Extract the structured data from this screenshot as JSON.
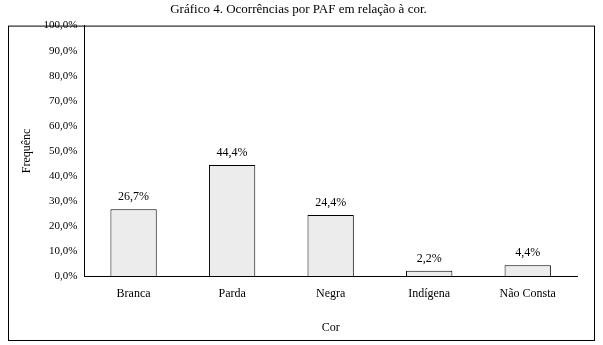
{
  "chart_data": {
    "type": "bar",
    "title": "Gráfico 4. Ocorrências por PAF em relação à cor.",
    "x_label": "Cor",
    "y_label": "Frequênc",
    "categories": [
      "Branca",
      "Parda",
      "Negra",
      "Indígena",
      "Não Consta"
    ],
    "values": [
      26.7,
      44.4,
      24.4,
      2.2,
      4.4
    ],
    "value_labels": [
      "26,7%",
      "44,4%",
      "24,4%",
      "2,2%",
      "4,4%"
    ],
    "data_labels": true,
    "color": "#ececec",
    "ylim": [
      0,
      100
    ],
    "yticks": [
      {
        "value": 0,
        "label": "0,0%"
      },
      {
        "value": 10,
        "label": "10,0%"
      },
      {
        "value": 20,
        "label": "20,0%"
      },
      {
        "value": 30,
        "label": "30,0%"
      },
      {
        "value": 40,
        "label": "40,0%"
      },
      {
        "value": 50,
        "label": "50,0%"
      },
      {
        "value": 60,
        "label": "60,0%"
      },
      {
        "value": 70,
        "label": "70,0%"
      },
      {
        "value": 80,
        "label": "80,0%"
      },
      {
        "value": 90,
        "label": "90,0%"
      },
      {
        "value": 100,
        "label": "100,0%"
      }
    ],
    "grid": false
  }
}
